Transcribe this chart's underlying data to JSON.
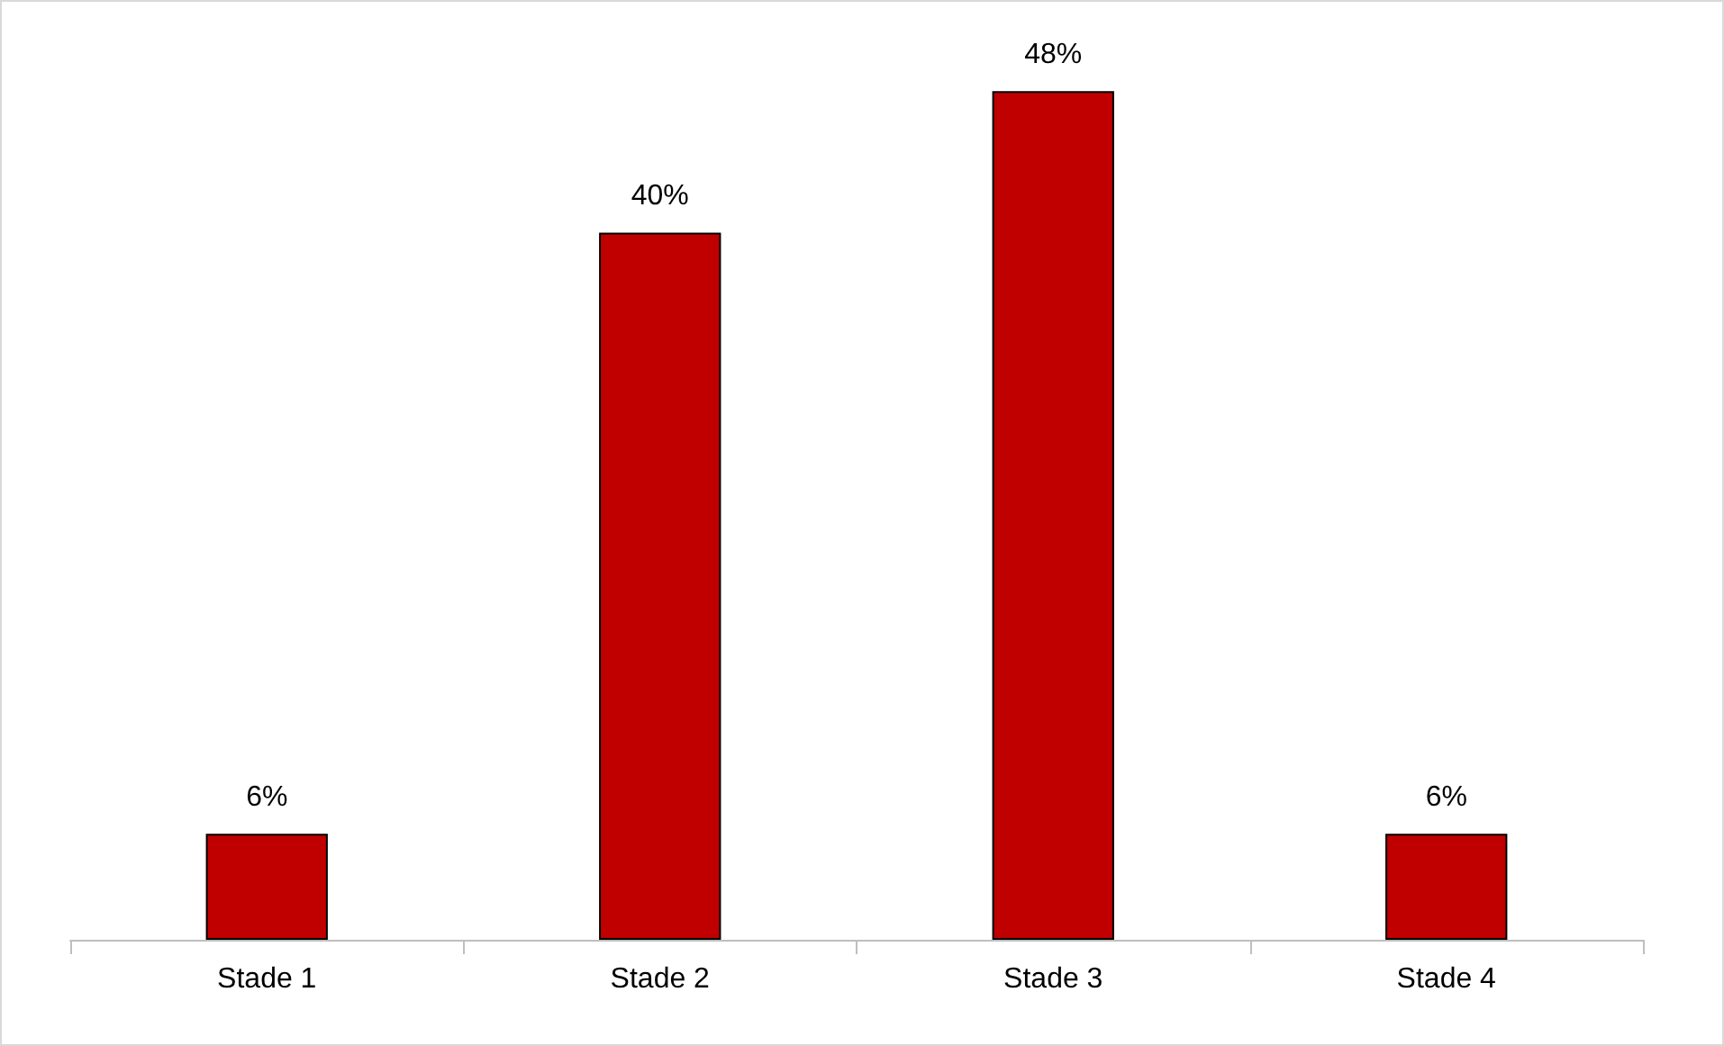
{
  "chart_data": {
    "type": "bar",
    "categories": [
      "Stade 1",
      "Stade 2",
      "Stade 3",
      "Stade 4"
    ],
    "values": [
      6,
      40,
      48,
      6
    ],
    "value_labels": [
      "6%",
      "40%",
      "48%",
      "6%"
    ],
    "color": "#c00000"
  }
}
